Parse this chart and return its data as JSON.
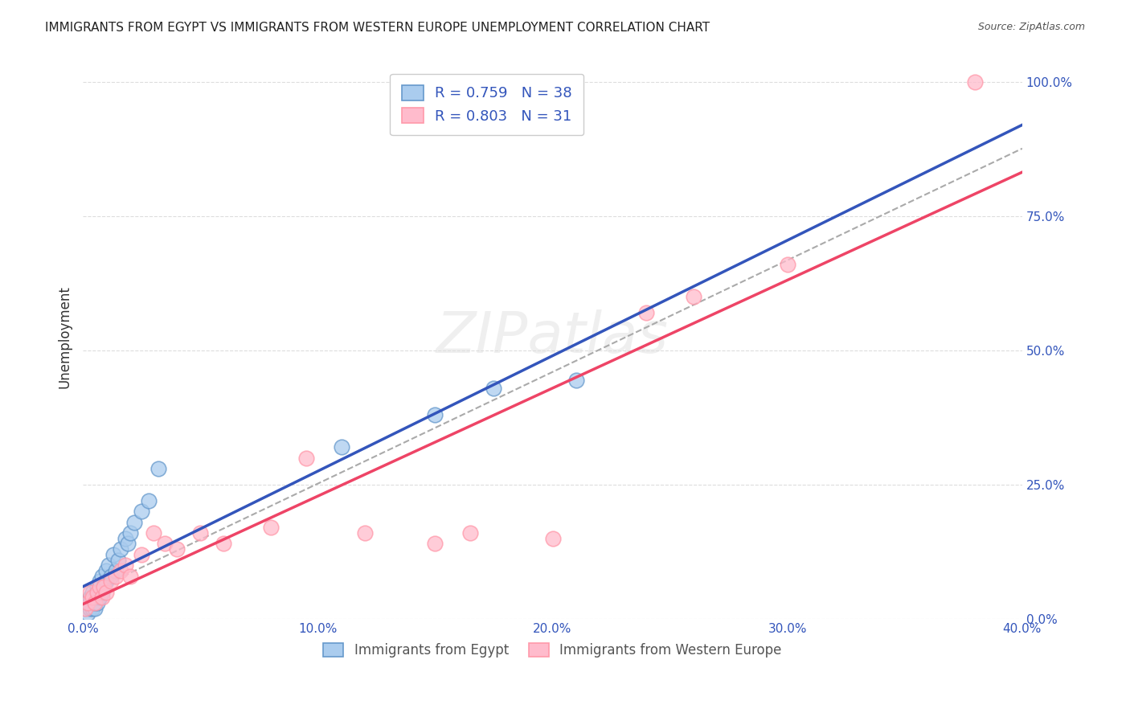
{
  "title": "IMMIGRANTS FROM EGYPT VS IMMIGRANTS FROM WESTERN EUROPE UNEMPLOYMENT CORRELATION CHART",
  "source": "Source: ZipAtlas.com",
  "ylabel": "Unemployment",
  "ytick_labels": [
    "0.0%",
    "25.0%",
    "50.0%",
    "75.0%",
    "100.0%"
  ],
  "ytick_values": [
    0,
    0.25,
    0.5,
    0.75,
    1.0
  ],
  "xlim": [
    0.0,
    0.4
  ],
  "ylim": [
    0.0,
    1.05
  ],
  "blue_color": "#6699CC",
  "pink_color": "#FF99AA",
  "blue_fill": "#AACCEE",
  "pink_fill": "#FFBBCC",
  "blue_scatter_x": [
    0.001,
    0.002,
    0.002,
    0.003,
    0.003,
    0.003,
    0.004,
    0.004,
    0.005,
    0.005,
    0.005,
    0.006,
    0.006,
    0.006,
    0.007,
    0.007,
    0.008,
    0.008,
    0.009,
    0.01,
    0.01,
    0.011,
    0.012,
    0.013,
    0.014,
    0.015,
    0.016,
    0.018,
    0.019,
    0.02,
    0.022,
    0.025,
    0.028,
    0.032,
    0.11,
    0.15,
    0.175,
    0.21
  ],
  "blue_scatter_y": [
    0.02,
    0.01,
    0.03,
    0.02,
    0.03,
    0.04,
    0.02,
    0.05,
    0.02,
    0.03,
    0.04,
    0.03,
    0.05,
    0.06,
    0.04,
    0.07,
    0.05,
    0.08,
    0.06,
    0.07,
    0.09,
    0.1,
    0.08,
    0.12,
    0.09,
    0.11,
    0.13,
    0.15,
    0.14,
    0.16,
    0.18,
    0.2,
    0.22,
    0.28,
    0.32,
    0.38,
    0.43,
    0.445
  ],
  "pink_scatter_x": [
    0.001,
    0.002,
    0.003,
    0.004,
    0.005,
    0.006,
    0.007,
    0.008,
    0.009,
    0.01,
    0.012,
    0.014,
    0.016,
    0.018,
    0.02,
    0.025,
    0.03,
    0.035,
    0.04,
    0.05,
    0.06,
    0.08,
    0.095,
    0.12,
    0.15,
    0.165,
    0.2,
    0.24,
    0.26,
    0.3,
    0.38
  ],
  "pink_scatter_y": [
    0.02,
    0.03,
    0.05,
    0.04,
    0.03,
    0.05,
    0.06,
    0.04,
    0.06,
    0.05,
    0.07,
    0.08,
    0.09,
    0.1,
    0.08,
    0.12,
    0.16,
    0.14,
    0.13,
    0.16,
    0.14,
    0.17,
    0.3,
    0.16,
    0.14,
    0.16,
    0.15,
    0.57,
    0.6,
    0.66,
    1.0
  ],
  "background_color": "#ffffff",
  "grid_color": "#dddddd"
}
